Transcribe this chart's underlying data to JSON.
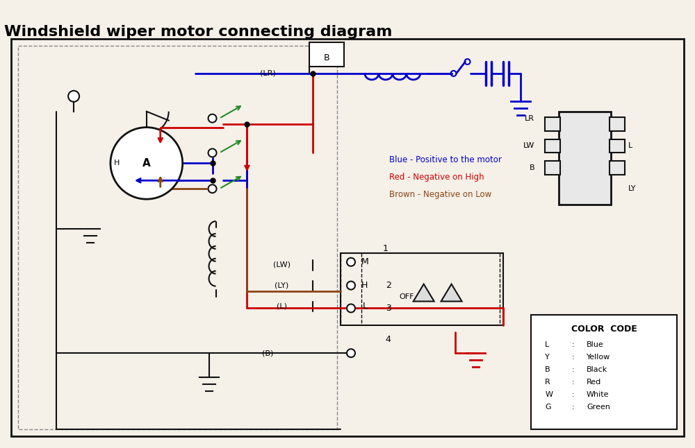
{
  "title": "Windshield wiper motor connecting diagram",
  "title_fontsize": 16,
  "bg_color": "#f5f0e8",
  "diagram_bg": "#f5f0e8",
  "border_color": "#222222",
  "line_color": "#111111",
  "blue_color": "#0000cc",
  "red_color": "#cc0000",
  "brown_color": "#8B4513",
  "green_color": "#228B22",
  "legend_blue": "Blue - Positive to the motor",
  "legend_red": "Red - Negative on High",
  "legend_brown": "Brown - Negative on Low",
  "color_codes": [
    [
      "L",
      ":",
      "Blue"
    ],
    [
      "Y",
      ":",
      "Yellow"
    ],
    [
      "B",
      ":",
      "Black"
    ],
    [
      "R",
      ":",
      "Red"
    ],
    [
      "W",
      ":",
      "White"
    ],
    [
      "G",
      ":",
      "Green"
    ]
  ],
  "connector_labels": [
    "LR",
    "LW",
    "L",
    "B"
  ],
  "connector_right_labels": [
    "LR",
    "LW",
    "LY",
    "B"
  ],
  "switch_labels": [
    "M",
    "H",
    "L"
  ],
  "position_labels": [
    "1",
    "2",
    "3",
    "4"
  ],
  "wire_labels": [
    "(LR)",
    "(LW)",
    "(LY)",
    "(L)",
    "(B)"
  ]
}
